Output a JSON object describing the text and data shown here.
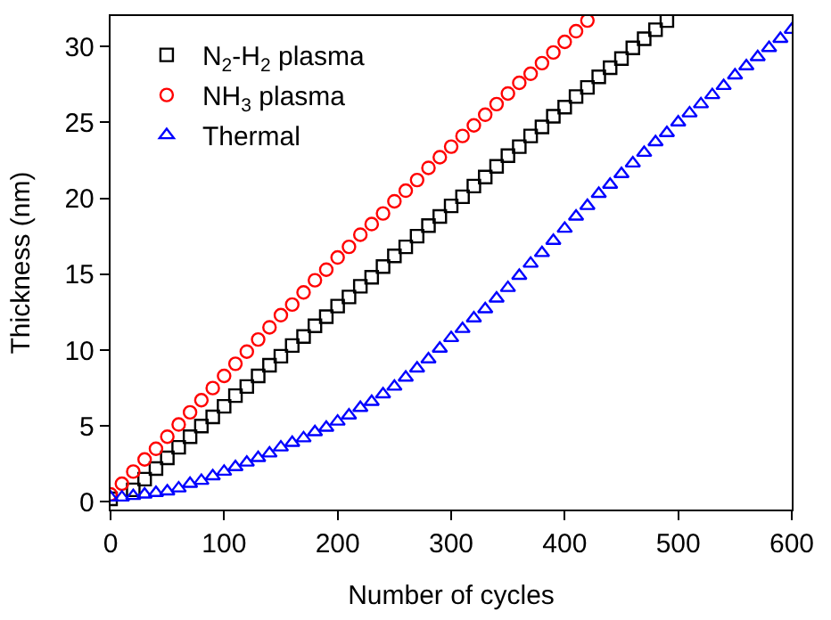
{
  "chart_data": {
    "type": "scatter",
    "xlabel": "Number of cycles",
    "ylabel": "Thickness (nm)",
    "xlim": [
      0,
      600
    ],
    "ylim": [
      -0.5,
      32
    ],
    "xticks": [
      0,
      100,
      200,
      300,
      400,
      500,
      600
    ],
    "yticks": [
      0,
      5,
      10,
      15,
      20,
      25,
      30
    ],
    "legend": "top left",
    "series": [
      {
        "name": "N$_{2}$-H$_{2}$ plasma",
        "color": "#000000",
        "marker": "square",
        "x": [
          0,
          10,
          20,
          30,
          40,
          50,
          60,
          70,
          80,
          90,
          100,
          110,
          120,
          130,
          140,
          150,
          160,
          170,
          180,
          190,
          200,
          210,
          220,
          230,
          240,
          250,
          260,
          270,
          280,
          290,
          300,
          310,
          320,
          330,
          340,
          350,
          360,
          370,
          380,
          390,
          400,
          410,
          420,
          430,
          440,
          450,
          460,
          470,
          480,
          490
        ],
        "values": [
          0.2,
          null,
          0.8,
          1.5,
          2.2,
          2.9,
          3.6,
          4.3,
          5.0,
          5.6,
          6.3,
          7.0,
          7.6,
          8.3,
          9.0,
          9.6,
          10.3,
          10.9,
          11.6,
          12.2,
          12.9,
          13.5,
          14.2,
          14.8,
          15.5,
          16.2,
          16.8,
          17.5,
          18.2,
          18.8,
          19.5,
          20.1,
          20.8,
          21.4,
          22.1,
          22.8,
          23.4,
          24.1,
          24.7,
          25.4,
          26.0,
          26.7,
          27.3,
          28.0,
          28.6,
          29.2,
          29.9,
          30.5,
          31.1,
          31.7
        ]
      },
      {
        "name": "NH$_{3}$ plasma",
        "color": "#ff0000",
        "marker": "circle",
        "x": [
          0,
          10,
          20,
          30,
          40,
          50,
          60,
          70,
          80,
          90,
          100,
          110,
          120,
          130,
          140,
          150,
          160,
          170,
          180,
          190,
          200,
          210,
          220,
          230,
          240,
          250,
          260,
          270,
          280,
          290,
          300,
          310,
          320,
          330,
          340,
          350,
          360,
          370,
          380,
          390,
          400,
          410,
          420
        ],
        "values": [
          0.5,
          1.2,
          2.0,
          2.8,
          3.5,
          4.3,
          5.1,
          5.9,
          6.7,
          7.5,
          8.3,
          9.1,
          9.9,
          10.7,
          11.5,
          12.3,
          13.0,
          13.8,
          14.6,
          15.3,
          16.1,
          16.8,
          17.6,
          18.3,
          19.0,
          19.8,
          20.5,
          21.2,
          22.0,
          22.7,
          23.4,
          24.1,
          24.8,
          25.5,
          26.2,
          26.9,
          27.6,
          28.2,
          28.9,
          29.6,
          30.3,
          31.0,
          31.7
        ]
      },
      {
        "name": "Thermal",
        "color": "#0000ff",
        "marker": "triangle",
        "x": [
          0,
          10,
          20,
          30,
          40,
          50,
          60,
          70,
          80,
          90,
          100,
          110,
          120,
          130,
          140,
          150,
          160,
          170,
          180,
          190,
          200,
          210,
          220,
          230,
          240,
          250,
          260,
          270,
          280,
          290,
          300,
          310,
          320,
          330,
          340,
          350,
          360,
          370,
          380,
          390,
          400,
          410,
          420,
          430,
          440,
          450,
          460,
          470,
          480,
          490,
          500,
          510,
          520,
          530,
          540,
          550,
          560,
          570,
          580,
          590,
          600
        ],
        "values": [
          0.3,
          0.3,
          0.4,
          0.5,
          0.6,
          0.7,
          0.9,
          1.2,
          1.4,
          1.7,
          2.0,
          2.3,
          2.6,
          2.9,
          3.2,
          3.6,
          3.9,
          4.2,
          4.6,
          4.9,
          5.3,
          5.7,
          6.2,
          6.6,
          7.1,
          7.6,
          8.2,
          8.8,
          9.4,
          10.1,
          10.8,
          11.4,
          12.1,
          12.7,
          13.4,
          14.1,
          14.9,
          15.7,
          16.4,
          17.2,
          18.0,
          18.8,
          19.5,
          20.3,
          20.9,
          21.6,
          22.3,
          23.0,
          23.7,
          24.3,
          25.0,
          25.6,
          26.2,
          26.8,
          27.4,
          28.1,
          28.7,
          29.3,
          29.9,
          30.5,
          31.1
        ]
      }
    ]
  }
}
